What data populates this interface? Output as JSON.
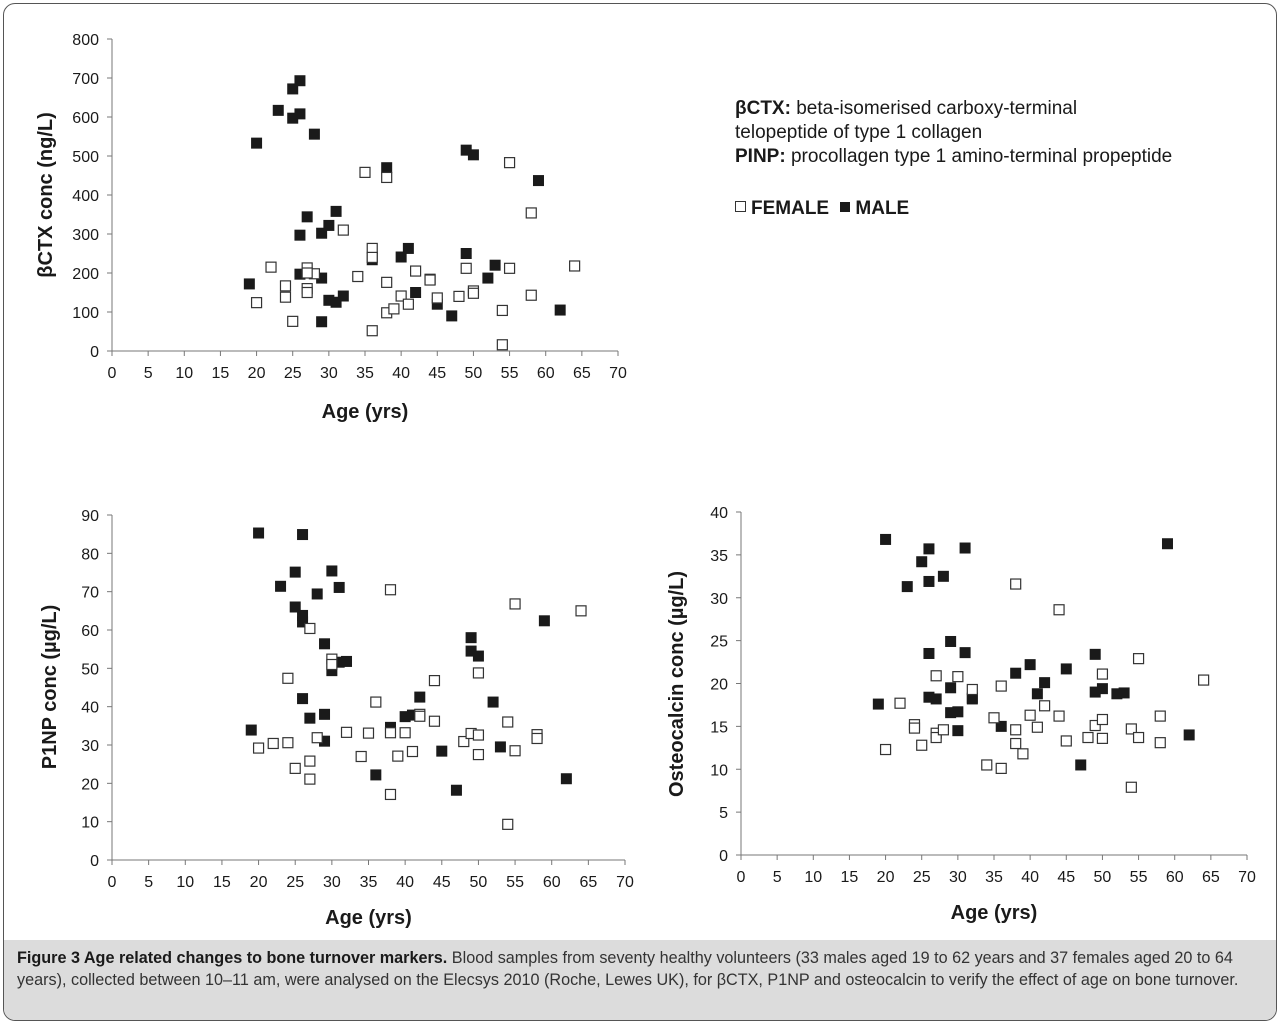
{
  "legend": {
    "ctx_term": "βCTX:",
    "ctx_desc_line1": "beta-isomerised carboxy-terminal",
    "ctx_desc_line2": "telopeptide of type 1 collagen",
    "pinp_term": "PINP:",
    "pinp_desc": "procollagen type 1 amino-terminal propeptide",
    "female_label": "FEMALE",
    "male_label": "MALE"
  },
  "caption": {
    "title": "Figure 3 Age related changes to bone turnover markers.",
    "text": "Blood samples from seventy healthy volunteers (33 males aged 19 to 62 years and 37 females aged 20 to 64 years), collected between 10–11 am, were analysed on the Elecsys 2010 (Roche, Lewes UK), for βCTX, P1NP and osteocalcin to verify the effect of age on bone turnover."
  },
  "chart_data": [
    {
      "type": "scatter",
      "title": "",
      "xlabel": "Age (yrs)",
      "ylabel": "βCTX  conc (ng/L)",
      "xlim": [
        0,
        70
      ],
      "ylim": [
        0,
        800
      ],
      "xticks": [
        0,
        5,
        10,
        15,
        20,
        25,
        30,
        35,
        40,
        45,
        50,
        55,
        60,
        65,
        70
      ],
      "yticks": [
        0,
        100,
        200,
        300,
        400,
        500,
        600,
        700,
        800
      ],
      "grid": false,
      "series": [
        {
          "name": "MALE",
          "marker": "filled-square",
          "points": [
            [
              19,
              172
            ],
            [
              20,
              533
            ],
            [
              23,
              617
            ],
            [
              25,
              597
            ],
            [
              25,
              672
            ],
            [
              26,
              608
            ],
            [
              26,
              693
            ],
            [
              26,
              197
            ],
            [
              26,
              297
            ],
            [
              27,
              344
            ],
            [
              28,
              556
            ],
            [
              29,
              302
            ],
            [
              29,
              187
            ],
            [
              29,
              75
            ],
            [
              30,
              322
            ],
            [
              30,
              130
            ],
            [
              31,
              358
            ],
            [
              31,
              125
            ],
            [
              32,
              141
            ],
            [
              36,
              234
            ],
            [
              38,
              470
            ],
            [
              40,
              241
            ],
            [
              41,
              263
            ],
            [
              42,
              150
            ],
            [
              45,
              120
            ],
            [
              47,
              90
            ],
            [
              49,
              515
            ],
            [
              49,
              250
            ],
            [
              50,
              503
            ],
            [
              52,
              187
            ],
            [
              53,
              220
            ],
            [
              59,
              437
            ],
            [
              62,
              105
            ]
          ]
        },
        {
          "name": "FEMALE",
          "marker": "open-square",
          "points": [
            [
              20,
              124
            ],
            [
              22,
              215
            ],
            [
              24,
              138
            ],
            [
              24,
              167
            ],
            [
              25,
              76
            ],
            [
              27,
              213
            ],
            [
              27,
              160
            ],
            [
              27,
              150
            ],
            [
              28,
              198
            ],
            [
              32,
              310
            ],
            [
              34,
              191
            ],
            [
              35,
              458
            ],
            [
              36,
              263
            ],
            [
              36,
              52
            ],
            [
              38,
              445
            ],
            [
              38,
              176
            ],
            [
              38,
              98
            ],
            [
              39,
              108
            ],
            [
              40,
              141
            ],
            [
              41,
              120
            ],
            [
              42,
              205
            ],
            [
              44,
              184
            ],
            [
              45,
              136
            ],
            [
              48,
              140
            ],
            [
              49,
              212
            ],
            [
              50,
              154
            ],
            [
              50,
              148
            ],
            [
              54,
              104
            ],
            [
              54,
              16
            ],
            [
              55,
              483
            ],
            [
              55,
              212
            ],
            [
              58,
              354
            ],
            [
              58,
              143
            ],
            [
              64,
              218
            ],
            [
              44,
              182
            ],
            [
              36,
              240
            ],
            [
              27,
              200
            ]
          ]
        }
      ]
    },
    {
      "type": "scatter",
      "title": "",
      "xlabel": "Age (yrs)",
      "ylabel": "P1NP conc (µg/L)",
      "xlim": [
        0,
        70
      ],
      "ylim": [
        0,
        90
      ],
      "xticks": [
        0,
        5,
        10,
        15,
        20,
        25,
        30,
        35,
        40,
        45,
        50,
        55,
        60,
        65,
        70
      ],
      "yticks": [
        0,
        10,
        20,
        30,
        40,
        50,
        60,
        70,
        80,
        90
      ],
      "grid": false,
      "series": [
        {
          "name": "MALE",
          "marker": "filled-square",
          "points": [
            [
              19,
              33.9
            ],
            [
              20,
              85.3
            ],
            [
              23,
              71.4
            ],
            [
              25,
              75.1
            ],
            [
              25,
              66.0
            ],
            [
              26,
              84.9
            ],
            [
              26,
              63.8
            ],
            [
              26,
              62.1
            ],
            [
              26,
              42.1
            ],
            [
              27,
              37.0
            ],
            [
              28,
              69.4
            ],
            [
              29,
              56.4
            ],
            [
              29,
              38.0
            ],
            [
              29,
              31.0
            ],
            [
              30,
              75.4
            ],
            [
              30,
              49.4
            ],
            [
              31,
              71.1
            ],
            [
              31,
              51.6
            ],
            [
              32,
              51.8
            ],
            [
              36,
              22.2
            ],
            [
              38,
              34.6
            ],
            [
              40,
              37.4
            ],
            [
              41,
              37.8
            ],
            [
              42,
              42.5
            ],
            [
              45,
              28.4
            ],
            [
              47,
              18.2
            ],
            [
              49,
              58.0
            ],
            [
              49,
              54.5
            ],
            [
              50,
              53.2
            ],
            [
              52,
              41.2
            ],
            [
              53,
              29.5
            ],
            [
              59,
              62.4
            ],
            [
              62,
              21.2
            ]
          ]
        },
        {
          "name": "FEMALE",
          "marker": "open-square",
          "points": [
            [
              20,
              29.2
            ],
            [
              22,
              30.4
            ],
            [
              24,
              47.4
            ],
            [
              24,
              30.6
            ],
            [
              25,
              23.9
            ],
            [
              27,
              60.4
            ],
            [
              27,
              25.8
            ],
            [
              27,
              21.1
            ],
            [
              28,
              31.9
            ],
            [
              30,
              52.4
            ],
            [
              30,
              51.0
            ],
            [
              32,
              33.3
            ],
            [
              34,
              27.0
            ],
            [
              35,
              33.1
            ],
            [
              36,
              41.2
            ],
            [
              38,
              70.5
            ],
            [
              38,
              33.2
            ],
            [
              38,
              17.1
            ],
            [
              39,
              27.1
            ],
            [
              40,
              33.2
            ],
            [
              41,
              28.3
            ],
            [
              42,
              38.0
            ],
            [
              44,
              36.2
            ],
            [
              44,
              46.8
            ],
            [
              48,
              30.9
            ],
            [
              49,
              33.0
            ],
            [
              50,
              48.8
            ],
            [
              50,
              32.6
            ],
            [
              50,
              27.5
            ],
            [
              54,
              36.0
            ],
            [
              54,
              9.3
            ],
            [
              55,
              66.8
            ],
            [
              55,
              28.5
            ],
            [
              58,
              32.7
            ],
            [
              58,
              31.7
            ],
            [
              64,
              65.0
            ],
            [
              42,
              37.5
            ]
          ]
        }
      ]
    },
    {
      "type": "scatter",
      "title": "",
      "xlabel": "Age (yrs)",
      "ylabel": "Osteocalcin conc (µg/L)",
      "xlim": [
        0,
        70
      ],
      "ylim": [
        0,
        40
      ],
      "xticks": [
        0,
        5,
        10,
        15,
        20,
        25,
        30,
        35,
        40,
        45,
        50,
        55,
        60,
        65,
        70
      ],
      "yticks": [
        0,
        5,
        10,
        15,
        20,
        25,
        30,
        35,
        40
      ],
      "grid": false,
      "series": [
        {
          "name": "MALE",
          "marker": "filled-square",
          "points": [
            [
              19,
              17.6
            ],
            [
              20,
              36.8
            ],
            [
              23,
              31.3
            ],
            [
              25,
              34.2
            ],
            [
              26,
              35.7
            ],
            [
              26,
              31.9
            ],
            [
              26,
              23.5
            ],
            [
              26,
              18.4
            ],
            [
              27,
              18.2
            ],
            [
              28,
              32.5
            ],
            [
              29,
              24.9
            ],
            [
              29,
              19.5
            ],
            [
              29,
              16.6
            ],
            [
              30,
              16.7
            ],
            [
              30,
              14.5
            ],
            [
              31,
              35.8
            ],
            [
              31,
              23.6
            ],
            [
              32,
              18.2
            ],
            [
              36,
              15.0
            ],
            [
              38,
              21.2
            ],
            [
              40,
              22.2
            ],
            [
              41,
              18.8
            ],
            [
              42,
              20.1
            ],
            [
              45,
              21.7
            ],
            [
              47,
              10.5
            ],
            [
              49,
              23.4
            ],
            [
              49,
              19.0
            ],
            [
              50,
              19.4
            ],
            [
              52,
              18.8
            ],
            [
              53,
              18.9
            ],
            [
              59,
              36.3
            ],
            [
              62,
              14.0
            ],
            [
              32,
              18.3
            ]
          ]
        },
        {
          "name": "FEMALE",
          "marker": "open-square",
          "points": [
            [
              20,
              12.3
            ],
            [
              22,
              17.7
            ],
            [
              24,
              15.2
            ],
            [
              24,
              14.8
            ],
            [
              25,
              12.8
            ],
            [
              27,
              20.9
            ],
            [
              27,
              14.2
            ],
            [
              27,
              13.7
            ],
            [
              28,
              14.6
            ],
            [
              30,
              20.8
            ],
            [
              32,
              19.3
            ],
            [
              34,
              10.5
            ],
            [
              35,
              16.0
            ],
            [
              36,
              19.7
            ],
            [
              36,
              10.1
            ],
            [
              38,
              31.6
            ],
            [
              38,
              14.6
            ],
            [
              38,
              13.0
            ],
            [
              39,
              11.8
            ],
            [
              40,
              16.3
            ],
            [
              41,
              14.9
            ],
            [
              42,
              17.4
            ],
            [
              44,
              28.6
            ],
            [
              44,
              16.2
            ],
            [
              45,
              13.3
            ],
            [
              48,
              13.7
            ],
            [
              49,
              15.1
            ],
            [
              50,
              21.1
            ],
            [
              50,
              15.8
            ],
            [
              50,
              13.6
            ],
            [
              54,
              14.7
            ],
            [
              54,
              7.9
            ],
            [
              55,
              22.9
            ],
            [
              55,
              13.7
            ],
            [
              58,
              16.2
            ],
            [
              58,
              13.1
            ],
            [
              64,
              20.4
            ]
          ]
        }
      ]
    }
  ]
}
